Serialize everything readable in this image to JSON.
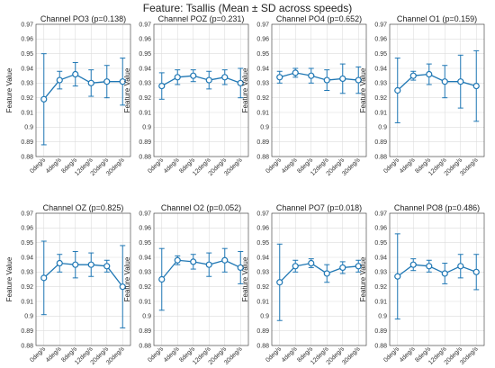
{
  "figure": {
    "title": "Feature: Tsallis (Mean ± SD across speeds)"
  },
  "chart_data": [
    {
      "type": "line",
      "title": "Channel PO3 (p=0.138)",
      "xlabel": "",
      "ylabel": "Feature Value",
      "categories": [
        "0deg/s",
        "4deg/s",
        "8deg/s",
        "12deg/s",
        "20deg/s",
        "30deg/s"
      ],
      "values": [
        0.919,
        0.932,
        0.936,
        0.93,
        0.931,
        0.931
      ],
      "sd": [
        0.031,
        0.006,
        0.008,
        0.009,
        0.011,
        0.016
      ],
      "ylim": [
        0.88,
        0.97
      ],
      "yticks": [
        0.88,
        0.89,
        0.9,
        0.91,
        0.92,
        0.93,
        0.94,
        0.95,
        0.96,
        0.97
      ],
      "grid": true
    },
    {
      "type": "line",
      "title": "Channel POZ (p=0.231)",
      "xlabel": "",
      "ylabel": "Feature Value",
      "categories": [
        "0deg/s",
        "4deg/s",
        "8deg/s",
        "12deg/s",
        "20deg/s",
        "30deg/s"
      ],
      "values": [
        0.928,
        0.934,
        0.935,
        0.932,
        0.934,
        0.93
      ],
      "sd": [
        0.009,
        0.005,
        0.004,
        0.006,
        0.005,
        0.01
      ],
      "ylim": [
        0.88,
        0.97
      ],
      "yticks": [
        0.88,
        0.89,
        0.9,
        0.91,
        0.92,
        0.93,
        0.94,
        0.95,
        0.96,
        0.97
      ],
      "grid": true
    },
    {
      "type": "line",
      "title": "Channel PO4 (p=0.652)",
      "xlabel": "",
      "ylabel": "Feature Value",
      "categories": [
        "0deg/s",
        "4deg/s",
        "8deg/s",
        "12deg/s",
        "20deg/s",
        "30deg/s"
      ],
      "values": [
        0.934,
        0.937,
        0.935,
        0.932,
        0.933,
        0.932
      ],
      "sd": [
        0.004,
        0.003,
        0.005,
        0.007,
        0.01,
        0.009
      ],
      "ylim": [
        0.88,
        0.97
      ],
      "yticks": [
        0.88,
        0.89,
        0.9,
        0.91,
        0.92,
        0.93,
        0.94,
        0.95,
        0.96,
        0.97
      ],
      "grid": true
    },
    {
      "type": "line",
      "title": "Channel O1 (p=0.159)",
      "xlabel": "",
      "ylabel": "Feature Value",
      "categories": [
        "0deg/s",
        "4deg/s",
        "8deg/s",
        "12deg/s",
        "20deg/s",
        "30deg/s"
      ],
      "values": [
        0.925,
        0.935,
        0.936,
        0.931,
        0.931,
        0.928
      ],
      "sd": [
        0.022,
        0.003,
        0.007,
        0.011,
        0.018,
        0.024
      ],
      "ylim": [
        0.88,
        0.97
      ],
      "yticks": [
        0.88,
        0.89,
        0.9,
        0.91,
        0.92,
        0.93,
        0.94,
        0.95,
        0.96,
        0.97
      ],
      "grid": true
    },
    {
      "type": "line",
      "title": "Channel OZ (p=0.825)",
      "xlabel": "",
      "ylabel": "Feature Value",
      "categories": [
        "0deg/s",
        "4deg/s",
        "8deg/s",
        "12deg/s",
        "20deg/s",
        "30deg/s"
      ],
      "values": [
        0.926,
        0.936,
        0.935,
        0.935,
        0.934,
        0.92
      ],
      "sd": [
        0.025,
        0.006,
        0.009,
        0.008,
        0.004,
        0.028
      ],
      "ylim": [
        0.88,
        0.97
      ],
      "yticks": [
        0.88,
        0.89,
        0.9,
        0.91,
        0.92,
        0.93,
        0.94,
        0.95,
        0.96,
        0.97
      ],
      "grid": true
    },
    {
      "type": "line",
      "title": "Channel O2 (p=0.052)",
      "xlabel": "",
      "ylabel": "Feature Value",
      "categories": [
        "0deg/s",
        "4deg/s",
        "8deg/s",
        "12deg/s",
        "20deg/s",
        "30deg/s"
      ],
      "values": [
        0.925,
        0.938,
        0.937,
        0.935,
        0.938,
        0.933
      ],
      "sd": [
        0.021,
        0.003,
        0.005,
        0.008,
        0.008,
        0.011
      ],
      "ylim": [
        0.88,
        0.97
      ],
      "yticks": [
        0.88,
        0.89,
        0.9,
        0.91,
        0.92,
        0.93,
        0.94,
        0.95,
        0.96,
        0.97
      ],
      "grid": true
    },
    {
      "type": "line",
      "title": "Channel PO7 (p=0.018)",
      "xlabel": "",
      "ylabel": "Feature Value",
      "categories": [
        "0deg/s",
        "4deg/s",
        "8deg/s",
        "12deg/s",
        "20deg/s",
        "30deg/s"
      ],
      "values": [
        0.923,
        0.934,
        0.936,
        0.929,
        0.933,
        0.934
      ],
      "sd": [
        0.026,
        0.004,
        0.003,
        0.006,
        0.004,
        0.004
      ],
      "ylim": [
        0.88,
        0.97
      ],
      "yticks": [
        0.88,
        0.89,
        0.9,
        0.91,
        0.92,
        0.93,
        0.94,
        0.95,
        0.96,
        0.97
      ],
      "grid": true
    },
    {
      "type": "line",
      "title": "Channel PO8 (p=0.486)",
      "xlabel": "",
      "ylabel": "Feature Value",
      "categories": [
        "0deg/s",
        "4deg/s",
        "8deg/s",
        "12deg/s",
        "20deg/s",
        "30deg/s"
      ],
      "values": [
        0.927,
        0.935,
        0.934,
        0.929,
        0.934,
        0.93
      ],
      "sd": [
        0.029,
        0.004,
        0.004,
        0.007,
        0.008,
        0.012
      ],
      "ylim": [
        0.88,
        0.97
      ],
      "yticks": [
        0.88,
        0.89,
        0.9,
        0.91,
        0.92,
        0.93,
        0.94,
        0.95,
        0.96,
        0.97
      ],
      "grid": true
    }
  ]
}
